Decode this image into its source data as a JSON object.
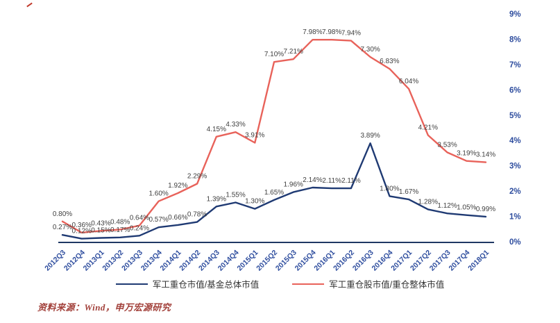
{
  "chart_data": {
    "type": "line",
    "categories": [
      "2012Q3",
      "2012Q4",
      "2013Q1",
      "2013Q2",
      "2013Q3",
      "2013Q4",
      "2014Q1",
      "2014Q2",
      "2014Q3",
      "2014Q4",
      "2015Q1",
      "2015Q2",
      "2015Q3",
      "2015Q4",
      "2016Q1",
      "2016Q2",
      "2016Q3",
      "2016Q4",
      "2017Q1",
      "2017Q2",
      "2017Q3",
      "2017Q4",
      "2018Q1"
    ],
    "series": [
      {
        "name": "军工重仓市值/基金总体市值",
        "color": "#1f3a73",
        "values": [
          0.27,
          0.12,
          0.15,
          0.17,
          0.24,
          0.57,
          0.66,
          0.78,
          1.39,
          1.55,
          1.3,
          1.65,
          1.96,
          2.14,
          2.11,
          2.11,
          3.89,
          1.8,
          1.67,
          1.28,
          1.12,
          1.05,
          0.99
        ]
      },
      {
        "name": "军工重仓股市值/重仓整体市值",
        "color": "#e8625a",
        "values": [
          0.8,
          0.36,
          0.43,
          0.48,
          0.64,
          1.6,
          1.92,
          2.29,
          4.15,
          4.33,
          3.91,
          7.1,
          7.21,
          7.98,
          7.98,
          7.94,
          7.3,
          6.83,
          6.04,
          4.21,
          3.53,
          3.19,
          3.14
        ]
      }
    ],
    "ylim": [
      0,
      9
    ],
    "y_ticks": [
      "0%",
      "1%",
      "2%",
      "3%",
      "4%",
      "5%",
      "6%",
      "7%",
      "8%",
      "9%"
    ],
    "y_axis_side": "right",
    "grid": false,
    "legend_position": "bottom",
    "label_format": "0.00%"
  },
  "source_note": "资料来源：Wind，申万宏源研究",
  "colors": {
    "tick_text": "#2e4d9e",
    "axis_line": "#1f3864",
    "data_label": "#3f3f3f",
    "source_text": "#a2403a"
  }
}
